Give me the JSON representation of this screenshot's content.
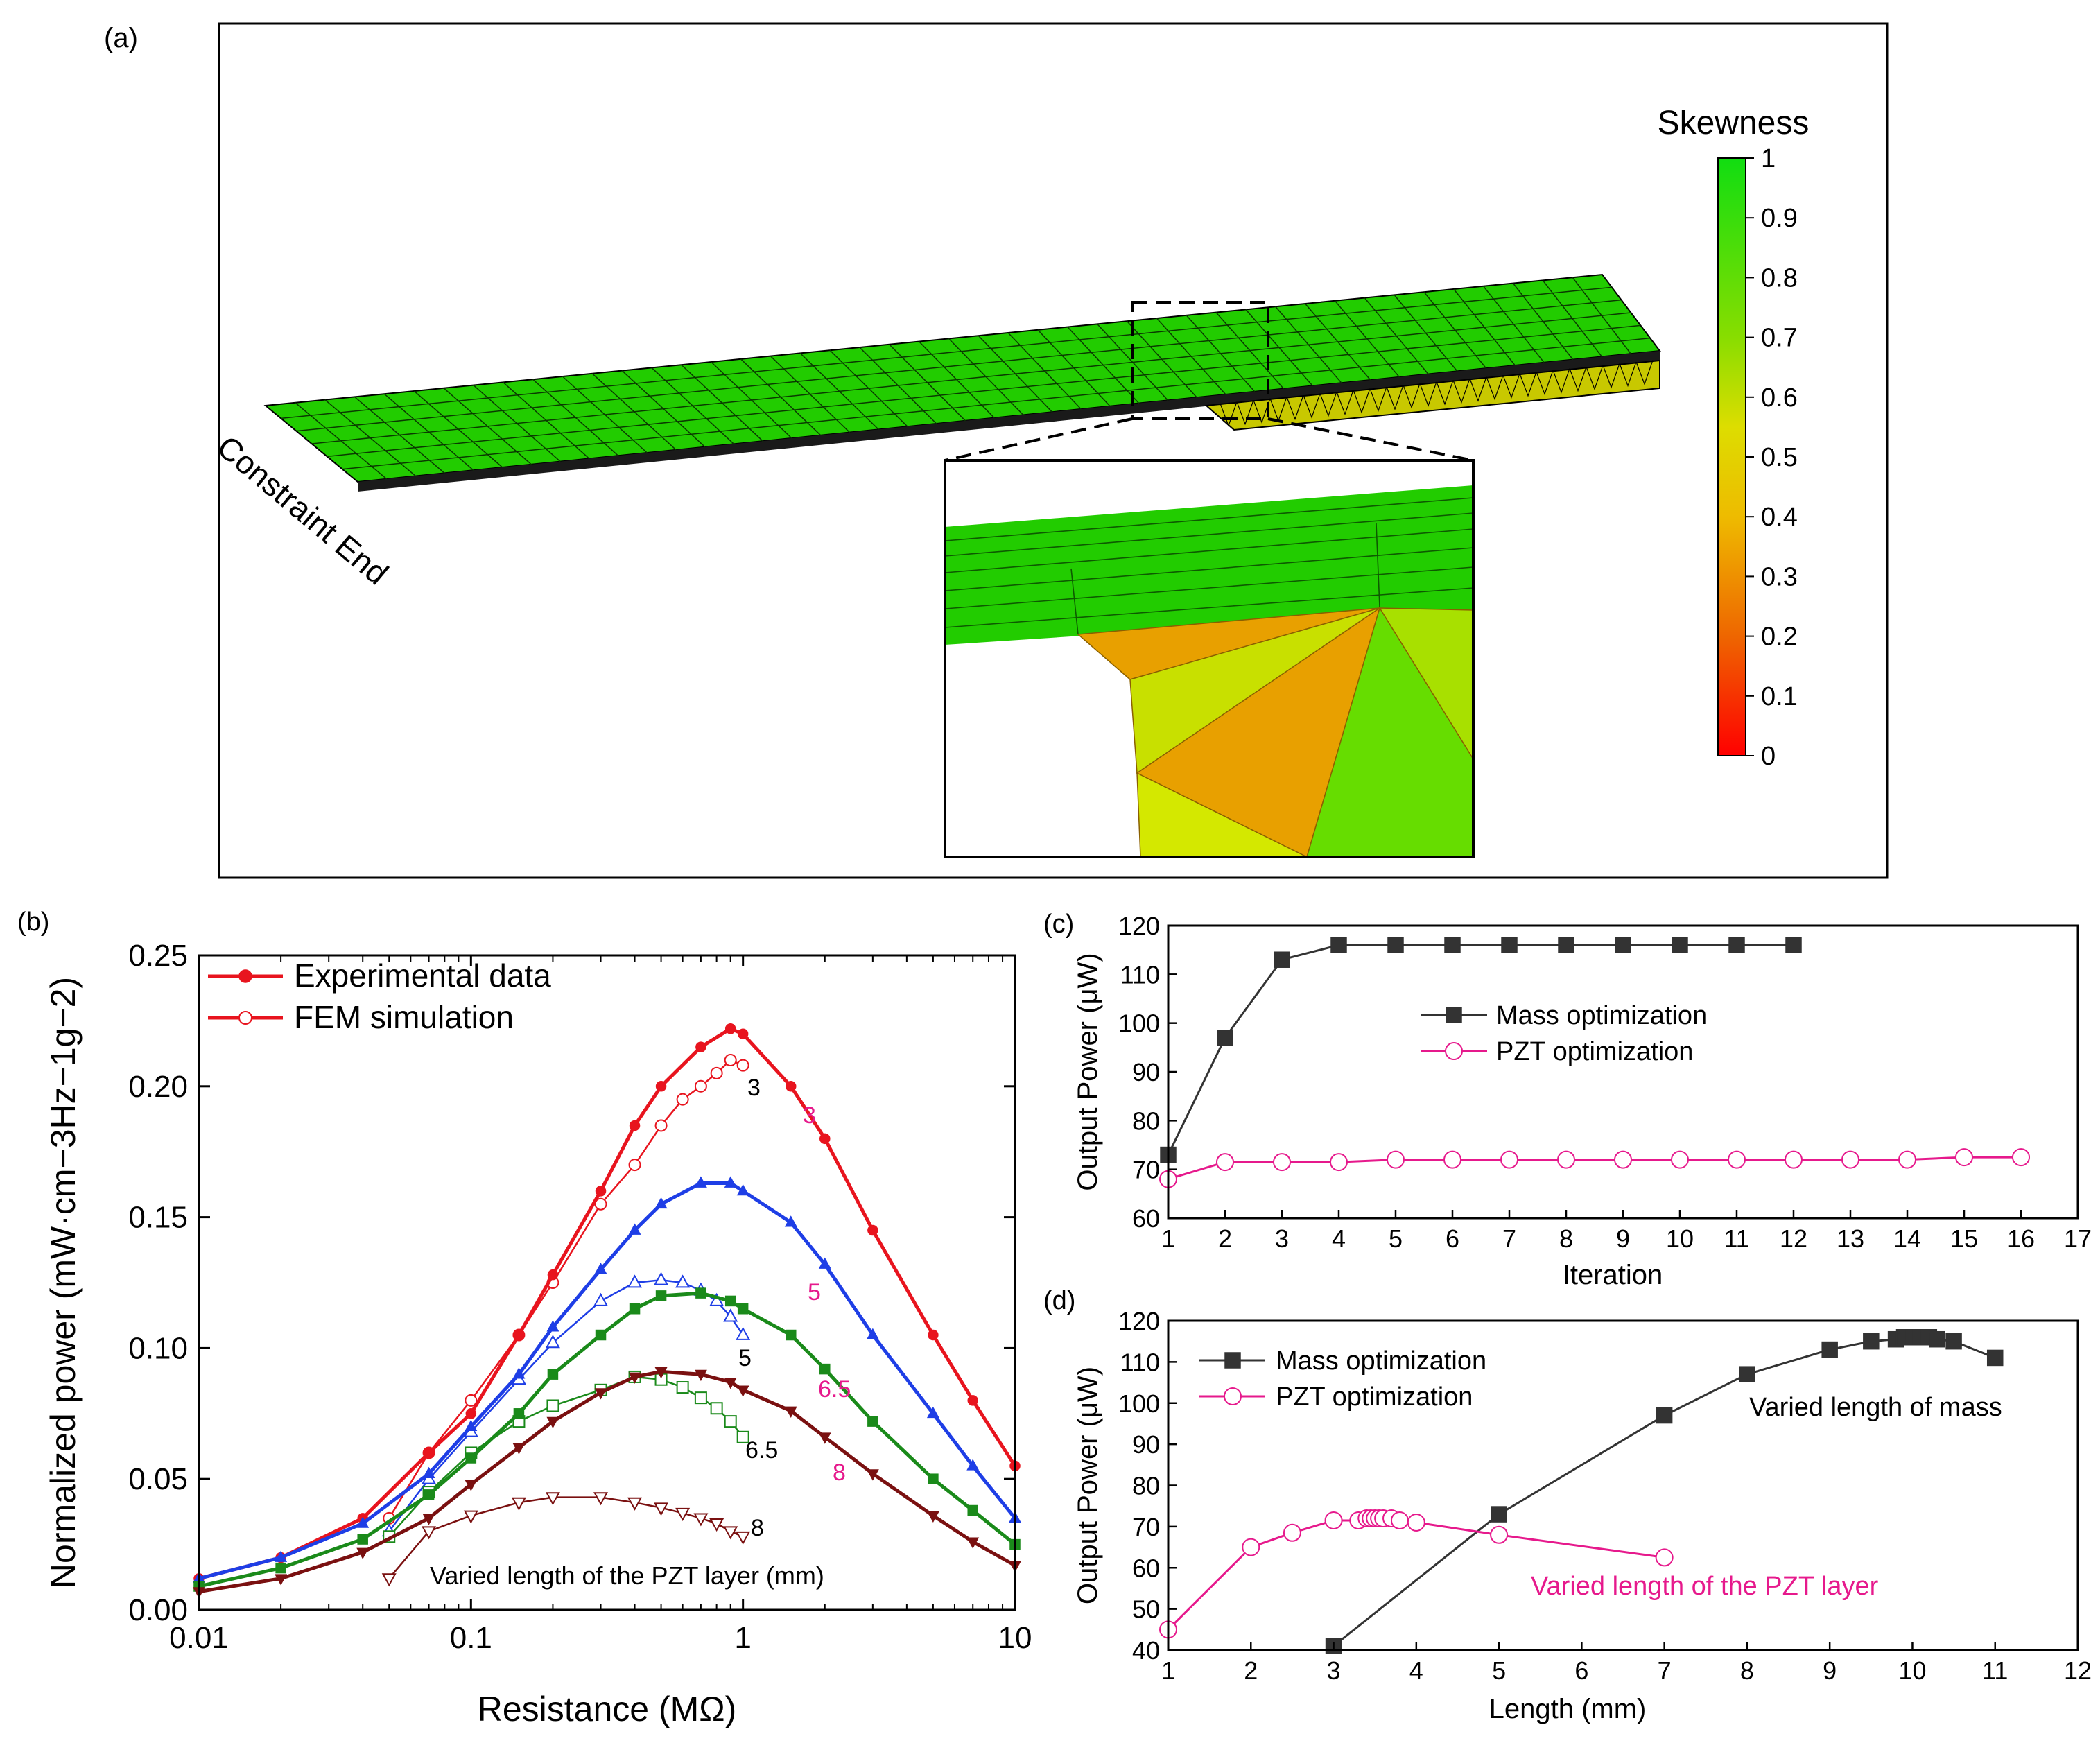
{
  "figure": {
    "panel_labels": {
      "a": "(a)",
      "b": "(b)",
      "c": "(c)",
      "d": "(d)"
    }
  },
  "panel_a": {
    "colorbar_title": "Skewness",
    "colorbar_ticks": [
      "1",
      "0.9",
      "0.8",
      "0.7",
      "0.6",
      "0.5",
      "0.4",
      "0.3",
      "0.2",
      "0.1",
      "0"
    ],
    "constraint_label": "Constraint End",
    "colors": {
      "mesh_green": "#22cc00",
      "mesh_orange": "#e8a000",
      "mesh_yellow": "#c8e000",
      "mesh_lime": "#66dd00"
    }
  },
  "chart_data": [
    {
      "id": "b",
      "type": "line",
      "xscale": "log",
      "xlabel": "Resistance (MΩ)",
      "ylabel": "Normalized power (mW·cm−3Hz−1g−2)",
      "xlim": [
        0.01,
        10
      ],
      "ylim": [
        0,
        0.25
      ],
      "xticks": [
        "0.01",
        "0.1",
        "1",
        "10"
      ],
      "yticks": [
        "0.00",
        "0.05",
        "0.10",
        "0.15",
        "0.20",
        "0.25"
      ],
      "legend": [
        {
          "label": "Experimental data",
          "color": "#e8141e",
          "marker": "filled-circle"
        },
        {
          "label": "FEM simulation",
          "color": "#e8141e",
          "marker": "open-circle"
        }
      ],
      "annotation": "Varied length of the PZT layer (mm)",
      "series": [
        {
          "name": "Exp 3 mm",
          "label": "3",
          "kind": "exp",
          "color": "#e8141e",
          "marker": "circle",
          "x": [
            0.01,
            0.02,
            0.04,
            0.07,
            0.1,
            0.15,
            0.2,
            0.3,
            0.4,
            0.5,
            0.7,
            0.9,
            1,
            1.5,
            2,
            3,
            5,
            7,
            10
          ],
          "y": [
            0.012,
            0.02,
            0.035,
            0.06,
            0.075,
            0.105,
            0.128,
            0.16,
            0.185,
            0.2,
            0.215,
            0.222,
            0.22,
            0.2,
            0.18,
            0.145,
            0.105,
            0.08,
            0.055
          ]
        },
        {
          "name": "Exp 5 mm",
          "label": "5",
          "kind": "exp",
          "color": "#1e3ee6",
          "marker": "triangle-up",
          "x": [
            0.01,
            0.02,
            0.04,
            0.07,
            0.1,
            0.15,
            0.2,
            0.3,
            0.4,
            0.5,
            0.7,
            0.9,
            1,
            1.5,
            2,
            3,
            5,
            7,
            10
          ],
          "y": [
            0.012,
            0.02,
            0.033,
            0.052,
            0.07,
            0.09,
            0.108,
            0.13,
            0.145,
            0.155,
            0.163,
            0.163,
            0.16,
            0.148,
            0.132,
            0.105,
            0.075,
            0.055,
            0.035
          ]
        },
        {
          "name": "Exp 6.5 mm",
          "label": "6.5",
          "kind": "exp",
          "color": "#1a8a1a",
          "marker": "square",
          "x": [
            0.01,
            0.02,
            0.04,
            0.07,
            0.1,
            0.15,
            0.2,
            0.3,
            0.4,
            0.5,
            0.7,
            0.9,
            1,
            1.5,
            2,
            3,
            5,
            7,
            10
          ],
          "y": [
            0.009,
            0.016,
            0.027,
            0.044,
            0.058,
            0.075,
            0.09,
            0.105,
            0.115,
            0.12,
            0.121,
            0.118,
            0.115,
            0.105,
            0.092,
            0.072,
            0.05,
            0.038,
            0.025
          ]
        },
        {
          "name": "Exp 8 mm",
          "label": "8",
          "kind": "exp",
          "color": "#7a1010",
          "marker": "triangle-down",
          "x": [
            0.01,
            0.02,
            0.04,
            0.07,
            0.1,
            0.15,
            0.2,
            0.3,
            0.4,
            0.5,
            0.7,
            0.9,
            1,
            1.5,
            2,
            3,
            5,
            7,
            10
          ],
          "y": [
            0.007,
            0.012,
            0.022,
            0.035,
            0.048,
            0.062,
            0.072,
            0.083,
            0.089,
            0.091,
            0.09,
            0.087,
            0.084,
            0.076,
            0.066,
            0.052,
            0.036,
            0.026,
            0.017
          ]
        },
        {
          "name": "FEM 3 mm",
          "label": "3",
          "kind": "fem",
          "color": "#e8141e",
          "marker": "open-circle",
          "x": [
            0.05,
            0.07,
            0.1,
            0.15,
            0.2,
            0.3,
            0.4,
            0.5,
            0.6,
            0.7,
            0.8,
            0.9,
            1.0
          ],
          "y": [
            0.035,
            0.06,
            0.08,
            0.105,
            0.125,
            0.155,
            0.17,
            0.185,
            0.195,
            0.2,
            0.205,
            0.21,
            0.208
          ]
        },
        {
          "name": "FEM 5 mm",
          "label": "5",
          "kind": "fem",
          "color": "#1e3ee6",
          "marker": "open-triangle-up",
          "x": [
            0.05,
            0.07,
            0.1,
            0.15,
            0.2,
            0.3,
            0.4,
            0.5,
            0.6,
            0.7,
            0.8,
            0.9,
            1.0
          ],
          "y": [
            0.03,
            0.05,
            0.068,
            0.088,
            0.102,
            0.118,
            0.125,
            0.126,
            0.125,
            0.122,
            0.118,
            0.112,
            0.105
          ]
        },
        {
          "name": "FEM 6.5 mm",
          "label": "6.5",
          "kind": "fem",
          "color": "#1a8a1a",
          "marker": "open-square",
          "x": [
            0.05,
            0.07,
            0.1,
            0.15,
            0.2,
            0.3,
            0.4,
            0.5,
            0.6,
            0.7,
            0.8,
            0.9,
            1.0
          ],
          "y": [
            0.028,
            0.045,
            0.06,
            0.072,
            0.078,
            0.084,
            0.089,
            0.088,
            0.085,
            0.081,
            0.077,
            0.072,
            0.066
          ]
        },
        {
          "name": "FEM 8 mm",
          "label": "8",
          "kind": "fem",
          "color": "#7a1010",
          "marker": "open-triangle-down",
          "x": [
            0.05,
            0.07,
            0.1,
            0.15,
            0.2,
            0.3,
            0.4,
            0.5,
            0.6,
            0.7,
            0.8,
            0.9,
            1.0
          ],
          "y": [
            0.012,
            0.03,
            0.036,
            0.041,
            0.043,
            0.043,
            0.041,
            0.039,
            0.037,
            0.035,
            0.033,
            0.03,
            0.028
          ]
        }
      ],
      "curve_labels": {
        "black": [
          "3",
          "5",
          "6.5",
          "8"
        ],
        "pink": [
          "3",
          "5",
          "6.5",
          "8"
        ]
      },
      "colors": {
        "pink": "#e6198c",
        "black": "#000000"
      }
    },
    {
      "id": "c",
      "type": "line",
      "xlabel": "Iteration",
      "ylabel": "Output Power (μW)",
      "xlim": [
        1,
        17
      ],
      "ylim": [
        60,
        120
      ],
      "xticks": [
        "1",
        "2",
        "3",
        "4",
        "5",
        "6",
        "7",
        "8",
        "9",
        "10",
        "11",
        "12",
        "13",
        "14",
        "15",
        "16",
        "17"
      ],
      "yticks": [
        "60",
        "70",
        "80",
        "90",
        "100",
        "110",
        "120"
      ],
      "series": [
        {
          "name": "Mass optimization",
          "color": "#333333",
          "marker": "square",
          "x": [
            1,
            2,
            3,
            4,
            5,
            6,
            7,
            8,
            9,
            10,
            11,
            12
          ],
          "y": [
            73,
            97,
            113,
            116,
            116,
            116,
            116,
            116,
            116,
            116,
            116,
            116
          ]
        },
        {
          "name": "PZT optimization",
          "color": "#e6198c",
          "marker": "open-circle",
          "x": [
            1,
            2,
            3,
            4,
            5,
            6,
            7,
            8,
            9,
            10,
            11,
            12,
            13,
            14,
            15,
            16
          ],
          "y": [
            68,
            71.5,
            71.5,
            71.5,
            72,
            72,
            72,
            72,
            72,
            72,
            72,
            72,
            72,
            72,
            72.5,
            72.5
          ]
        }
      ]
    },
    {
      "id": "d",
      "type": "line",
      "xlabel": "Length (mm)",
      "ylabel": "Output Power (μW)",
      "xlim": [
        1,
        12
      ],
      "ylim": [
        40,
        120
      ],
      "xticks": [
        "1",
        "2",
        "3",
        "4",
        "5",
        "6",
        "7",
        "8",
        "9",
        "10",
        "11",
        "12"
      ],
      "yticks": [
        "40",
        "50",
        "60",
        "70",
        "80",
        "90",
        "100",
        "110",
        "120"
      ],
      "annotations": {
        "mass": "Varied length of mass",
        "pzt": "Varied length of the PZT layer"
      },
      "series": [
        {
          "name": "Mass optimization",
          "color": "#333333",
          "marker": "square",
          "x": [
            3,
            5,
            7,
            8,
            9,
            9.5,
            9.8,
            9.9,
            10,
            10.1,
            10.2,
            10.3,
            10.5,
            11
          ],
          "y": [
            41,
            73,
            97,
            107,
            113,
            115,
            115.5,
            116,
            116,
            116,
            116,
            115.5,
            115,
            111
          ]
        },
        {
          "name": "PZT optimization",
          "color": "#e6198c",
          "marker": "open-circle",
          "x": [
            1,
            2,
            2.5,
            3,
            3.3,
            3.4,
            3.45,
            3.5,
            3.55,
            3.6,
            3.7,
            3.8,
            4,
            5,
            7
          ],
          "y": [
            45,
            65,
            68.5,
            71.5,
            71.5,
            72,
            72,
            72,
            72,
            72,
            72,
            71.5,
            71,
            68,
            62.5
          ]
        }
      ]
    }
  ]
}
